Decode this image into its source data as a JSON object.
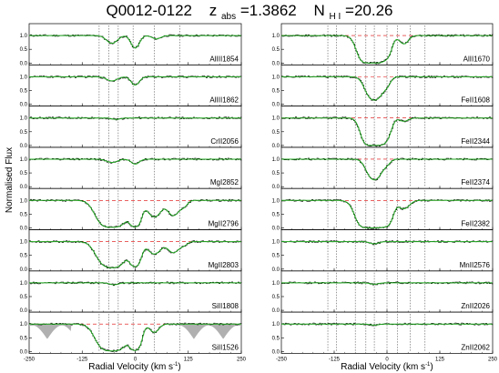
{
  "title": {
    "object": "Q0012-0122",
    "z_label": "z",
    "z_sub": "abs",
    "z_value": "=1.3862",
    "n_label": "N",
    "n_sub": "H I",
    "n_value": "=20.26"
  },
  "chart_data": {
    "type": "line",
    "xlabel": "Radial Velocity (km s",
    "xlabel_sup": "-1",
    "xlabel_end": ")",
    "ylabel": "Normalised Flux",
    "xlim": [
      -250,
      250
    ],
    "ylim": [
      0,
      1.3
    ],
    "xticks": [
      -250,
      -125,
      0,
      125,
      250
    ],
    "yticks": [
      "0.0",
      "0.5",
      "1.0"
    ],
    "continuum": 1.0,
    "colors": {
      "data": "#000000",
      "model": "#22aa22",
      "reference": "#dd0000",
      "blend": "#b0b0b0",
      "components": "#555555"
    },
    "left_components": [
      -85,
      -62,
      -40,
      -5,
      45,
      105
    ],
    "right_components": [
      -140,
      -120,
      -75,
      -50,
      -30,
      0,
      25,
      55,
      90
    ],
    "panels": [
      {
        "ion": "AlIII1854",
        "column": "left",
        "refline": false,
        "lines": [
          {
            "v": -55,
            "depth": 0.28,
            "width": 12
          },
          {
            "v": 0,
            "depth": 0.45,
            "width": 9
          },
          {
            "v": 50,
            "depth": 0.12,
            "width": 10
          }
        ]
      },
      {
        "ion": "AlIII1862",
        "column": "left",
        "refline": false,
        "lines": [
          {
            "v": -55,
            "depth": 0.15,
            "width": 12
          },
          {
            "v": 0,
            "depth": 0.3,
            "width": 9
          }
        ]
      },
      {
        "ion": "CrII2056",
        "column": "left",
        "refline": false,
        "lines": [
          {
            "v": -45,
            "depth": 0.05,
            "width": 10
          }
        ]
      },
      {
        "ion": "MgI2852",
        "column": "left",
        "refline": false,
        "lines": [
          {
            "v": -55,
            "depth": 0.12,
            "width": 12
          },
          {
            "v": 0,
            "depth": 0.18,
            "width": 9
          }
        ]
      },
      {
        "ion": "MgII2796",
        "column": "left",
        "refline": true,
        "lines": [
          {
            "v": -55,
            "depth": 0.98,
            "width": 22
          },
          {
            "v": 0,
            "depth": 0.95,
            "width": 10
          },
          {
            "v": 45,
            "depth": 0.6,
            "width": 14
          },
          {
            "v": 90,
            "depth": 0.55,
            "width": 12
          },
          {
            "v": 115,
            "depth": 0.2,
            "width": 8
          }
        ]
      },
      {
        "ion": "MgII2803",
        "column": "left",
        "refline": true,
        "lines": [
          {
            "v": -55,
            "depth": 0.95,
            "width": 22
          },
          {
            "v": 0,
            "depth": 0.9,
            "width": 10
          },
          {
            "v": 45,
            "depth": 0.45,
            "width": 14
          },
          {
            "v": 90,
            "depth": 0.4,
            "width": 12
          },
          {
            "v": 115,
            "depth": 0.12,
            "width": 8
          }
        ]
      },
      {
        "ion": "SiII1808",
        "column": "left",
        "refline": false,
        "lines": [
          {
            "v": -50,
            "depth": 0.07,
            "width": 10
          }
        ]
      },
      {
        "ion": "SiII1526",
        "column": "left",
        "refline": true,
        "blend": true,
        "lines": [
          {
            "v": -55,
            "depth": 0.98,
            "width": 22
          },
          {
            "v": 0,
            "depth": 0.95,
            "width": 10
          },
          {
            "v": 45,
            "depth": 0.3,
            "width": 10
          }
        ]
      },
      {
        "ion": "AlII1670",
        "column": "right",
        "refline": true,
        "lines": [
          {
            "v": -35,
            "depth": 1.0,
            "width": 18
          },
          {
            "v": 0,
            "depth": 0.6,
            "width": 9
          },
          {
            "v": 40,
            "depth": 0.3,
            "width": 10
          }
        ]
      },
      {
        "ion": "FeII1608",
        "column": "right",
        "refline": true,
        "lines": [
          {
            "v": -30,
            "depth": 0.85,
            "width": 15
          },
          {
            "v": 0,
            "depth": 0.25,
            "width": 8
          }
        ]
      },
      {
        "ion": "FeII2344",
        "column": "right",
        "refline": true,
        "lines": [
          {
            "v": -30,
            "depth": 1.0,
            "width": 16
          },
          {
            "v": 0,
            "depth": 0.45,
            "width": 9
          },
          {
            "v": 40,
            "depth": 0.12,
            "width": 10
          }
        ]
      },
      {
        "ion": "FeII2374",
        "column": "right",
        "refline": true,
        "lines": [
          {
            "v": -30,
            "depth": 0.75,
            "width": 14
          },
          {
            "v": 0,
            "depth": 0.15,
            "width": 8
          }
        ]
      },
      {
        "ion": "FeII2382",
        "column": "right",
        "refline": true,
        "lines": [
          {
            "v": -35,
            "depth": 1.0,
            "width": 20
          },
          {
            "v": 0,
            "depth": 0.75,
            "width": 10
          },
          {
            "v": 40,
            "depth": 0.3,
            "width": 12
          }
        ]
      },
      {
        "ion": "MnII2576",
        "column": "right",
        "refline": false,
        "lines": [
          {
            "v": -30,
            "depth": 0.08,
            "width": 10
          }
        ]
      },
      {
        "ion": "ZnII2026",
        "column": "right",
        "refline": false,
        "lines": [
          {
            "v": -30,
            "depth": 0.05,
            "width": 10
          }
        ]
      },
      {
        "ion": "ZnII2062",
        "column": "right",
        "refline": false,
        "lines": [
          {
            "v": -30,
            "depth": 0.04,
            "width": 10
          }
        ]
      }
    ]
  }
}
